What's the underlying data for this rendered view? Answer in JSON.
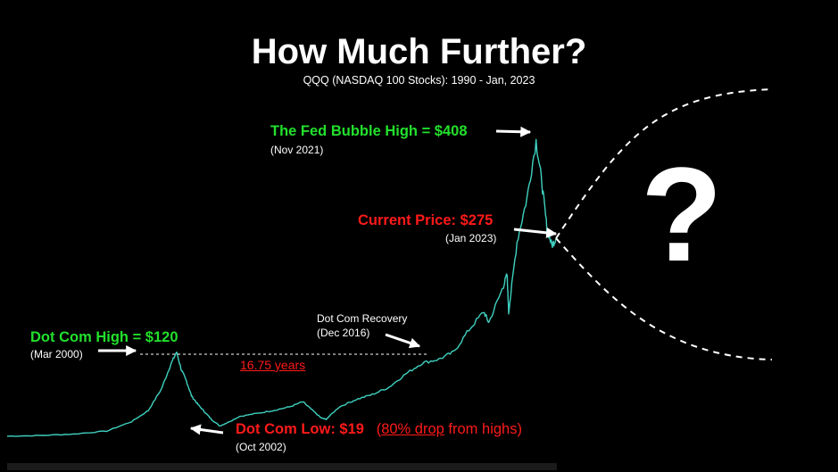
{
  "title": "How Much Further?",
  "subtitle": "QQQ (NASDAQ 100 Stocks): 1990 - Jan, 2023",
  "annotations": {
    "dotcom_high": {
      "label": "Dot Com High = $120",
      "date": "(Mar 2000)"
    },
    "dotcom_low": {
      "label": "Dot Com Low: $19",
      "pct": "80% drop",
      "suffix": " from highs)",
      "prefix": "(",
      "date": "(Oct 2002)"
    },
    "recovery": {
      "label": "Dot Com Recovery",
      "date": "(Dec 2016)"
    },
    "duration": "16.75 years",
    "fed_high": {
      "label": "The Fed Bubble High = $408",
      "date": "(Nov 2021)"
    },
    "current": {
      "label": "Current Price: $275",
      "date": "(Jan 2023)"
    },
    "question": "?"
  },
  "colors": {
    "background": "#000000",
    "price_line": "#3fd1c0",
    "accent_green": "#22e02c",
    "accent_red": "#ff1a1a",
    "text": "#ffffff"
  },
  "chart_data": {
    "type": "line",
    "title": "How Much Further?",
    "subtitle": "QQQ (NASDAQ 100 Stocks): 1990 - Jan, 2023",
    "xlabel": "",
    "ylabel": "",
    "xlim": [
      1990,
      2023.1
    ],
    "ylim": [
      0,
      420
    ],
    "grid": false,
    "series": [
      {
        "values": [
          [
            1990.0,
            5
          ],
          [
            1992.0,
            6
          ],
          [
            1994.0,
            8
          ],
          [
            1996.0,
            12
          ],
          [
            1997.5,
            25
          ],
          [
            1998.5,
            40
          ],
          [
            1999.3,
            70
          ],
          [
            1999.8,
            100
          ],
          [
            2000.2,
            120
          ],
          [
            2000.5,
            95
          ],
          [
            2000.8,
            80
          ],
          [
            2001.1,
            60
          ],
          [
            2001.5,
            48
          ],
          [
            2001.9,
            38
          ],
          [
            2002.3,
            28
          ],
          [
            2002.8,
            19
          ],
          [
            2003.3,
            24
          ],
          [
            2004.0,
            32
          ],
          [
            2005.0,
            36
          ],
          [
            2006.0,
            40
          ],
          [
            2007.0,
            45
          ],
          [
            2007.8,
            52
          ],
          [
            2008.3,
            42
          ],
          [
            2008.9,
            30
          ],
          [
            2009.2,
            28
          ],
          [
            2010.0,
            45
          ],
          [
            2011.0,
            55
          ],
          [
            2012.0,
            62
          ],
          [
            2013.0,
            72
          ],
          [
            2014.0,
            90
          ],
          [
            2015.0,
            105
          ],
          [
            2016.0,
            110
          ],
          [
            2016.9,
            120
          ],
          [
            2017.8,
            150
          ],
          [
            2018.7,
            175
          ],
          [
            2019.0,
            160
          ],
          [
            2019.8,
            205
          ],
          [
            2020.1,
            225
          ],
          [
            2020.2,
            175
          ],
          [
            2020.7,
            270
          ],
          [
            2021.3,
            330
          ],
          [
            2021.85,
            408
          ],
          [
            2022.2,
            350
          ],
          [
            2022.5,
            290
          ],
          [
            2022.8,
            265
          ],
          [
            2023.05,
            275
          ]
        ]
      }
    ],
    "projections": {
      "up": [
        2023.05,
        275
      ],
      "down": [
        2023.05,
        275
      ],
      "style": "dashed"
    }
  }
}
